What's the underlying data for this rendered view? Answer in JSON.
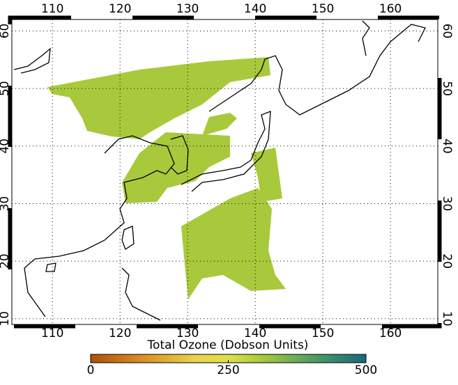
{
  "map": {
    "lon_range": [
      104,
      167
    ],
    "lat_range": [
      9,
      62
    ],
    "lon_ticks": [
      110,
      120,
      130,
      140,
      150,
      160
    ],
    "lat_ticks": [
      10,
      20,
      30,
      40,
      50,
      60
    ],
    "colorbar": {
      "title": "Total Ozone (Dobson Units)",
      "range": [
        0,
        500
      ],
      "ticks": [
        0,
        250,
        500
      ]
    }
  }
}
